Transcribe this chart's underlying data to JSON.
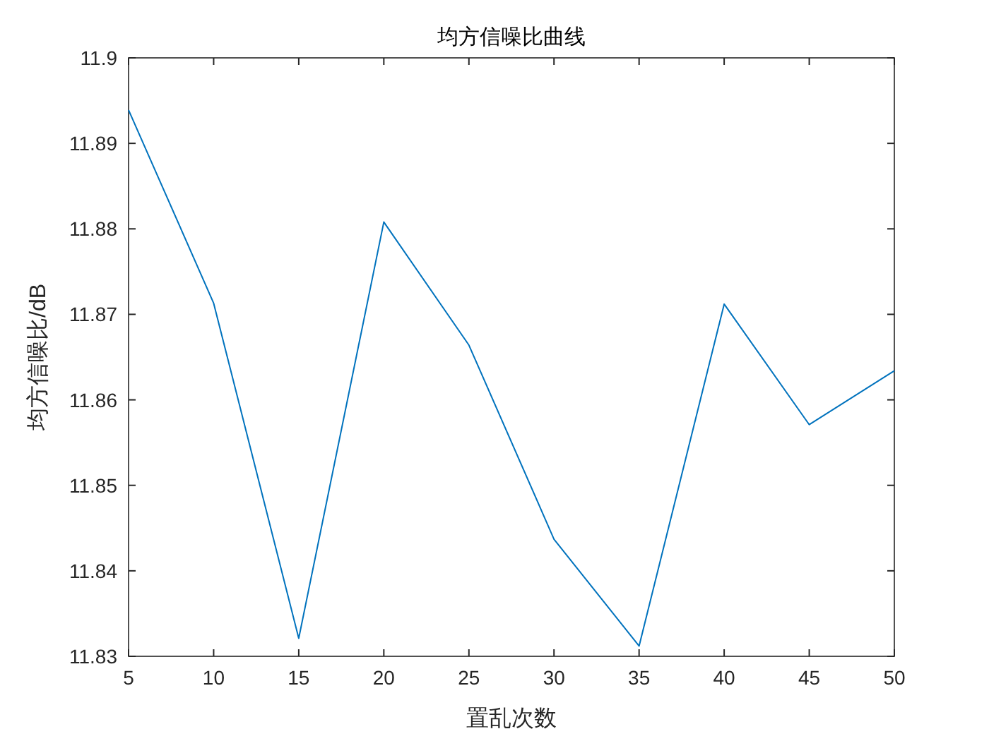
{
  "chart_data": {
    "type": "line",
    "title": "均方信噪比曲线",
    "xlabel": "置乱次数",
    "ylabel": "均方信噪比/dB",
    "x": [
      5,
      10,
      15,
      20,
      25,
      30,
      35,
      40,
      45,
      50
    ],
    "series": [
      {
        "color": "#0072bd",
        "values": [
          11.8939,
          11.8713,
          11.8321,
          11.8808,
          11.8664,
          11.8437,
          11.8312,
          11.8712,
          11.8571,
          11.8634
        ]
      }
    ],
    "xlim": [
      5,
      50
    ],
    "xticks": [
      5,
      10,
      15,
      20,
      25,
      30,
      35,
      40,
      45,
      50
    ],
    "ylim": [
      11.83,
      11.9
    ],
    "yticks": [
      11.83,
      11.84,
      11.85,
      11.86,
      11.87,
      11.88,
      11.89,
      11.9
    ],
    "grid": false,
    "marker": "none",
    "line_style": "solid"
  }
}
